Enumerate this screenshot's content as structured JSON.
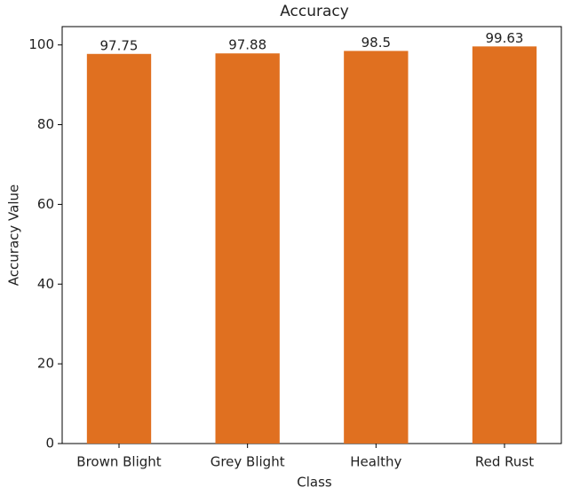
{
  "chart_data": {
    "type": "bar",
    "title": "Accuracy",
    "x_label": "Class",
    "y_label": "Accuracy Value",
    "categories": [
      "Brown Blight",
      "Grey Blight",
      "Healthy",
      "Red Rust"
    ],
    "values": [
      97.75,
      97.88,
      98.5,
      99.63
    ],
    "color": "#e07020",
    "ylim": [
      0,
      104.6
    ],
    "yticks": [
      0,
      20,
      40,
      60,
      80,
      100
    ],
    "grid": false
  }
}
